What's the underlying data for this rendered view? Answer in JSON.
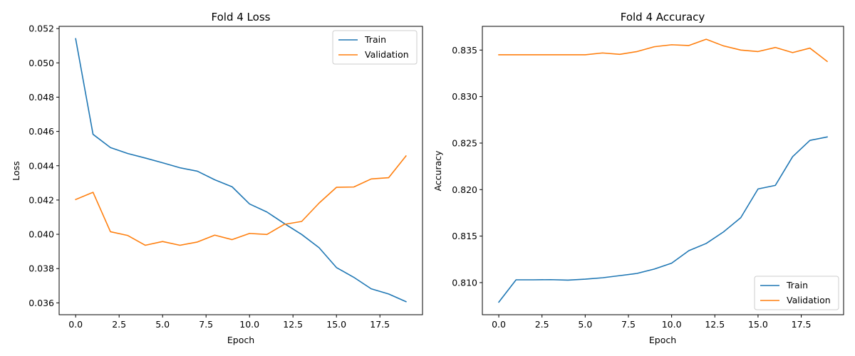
{
  "chart_data": [
    {
      "type": "line",
      "title": "Fold 4 Loss",
      "xlabel": "Epoch",
      "ylabel": "Loss",
      "xlim": [
        -0.95,
        19.95
      ],
      "ylim": [
        0.03531,
        0.05213
      ],
      "x_ticks": [
        0,
        2.5,
        5,
        7.5,
        10,
        12.5,
        15,
        17.5
      ],
      "x_tick_labels": [
        "0.0",
        "2.5",
        "5.0",
        "7.5",
        "10.0",
        "12.5",
        "15.0",
        "17.5"
      ],
      "y_ticks": [
        0.036,
        0.038,
        0.04,
        0.042,
        0.044,
        0.046,
        0.048,
        0.05,
        0.052
      ],
      "y_tick_labels": [
        "0.036",
        "0.038",
        "0.040",
        "0.042",
        "0.044",
        "0.046",
        "0.048",
        "0.050",
        "0.052"
      ],
      "legend_position": "top-right",
      "x": [
        0,
        1,
        2,
        3,
        4,
        5,
        6,
        7,
        8,
        9,
        10,
        11,
        12,
        13,
        14,
        15,
        16,
        17,
        18,
        19
      ],
      "series": [
        {
          "name": "Train",
          "color": "#1f77b4",
          "values": [
            0.05141,
            0.04583,
            0.04506,
            0.04471,
            0.04445,
            0.04417,
            0.04388,
            0.04368,
            0.04318,
            0.04277,
            0.04177,
            0.0413,
            0.04063,
            0.03999,
            0.03922,
            0.03806,
            0.03749,
            0.03682,
            0.03652,
            0.03607
          ]
        },
        {
          "name": "Validation",
          "color": "#ff7f0e",
          "values": [
            0.04203,
            0.04245,
            0.04015,
            0.03993,
            0.03936,
            0.03958,
            0.03936,
            0.03955,
            0.03995,
            0.03969,
            0.04005,
            0.03999,
            0.04058,
            0.04075,
            0.04182,
            0.04274,
            0.04276,
            0.04323,
            0.0433,
            0.04457
          ]
        }
      ]
    },
    {
      "type": "line",
      "title": "Fold 4 Accuracy",
      "xlabel": "Epoch",
      "ylabel": "Accuracy",
      "xlim": [
        -0.95,
        19.95
      ],
      "ylim": [
        0.80655,
        0.83755
      ],
      "x_ticks": [
        0,
        2.5,
        5,
        7.5,
        10,
        12.5,
        15,
        17.5
      ],
      "x_tick_labels": [
        "0.0",
        "2.5",
        "5.0",
        "7.5",
        "10.0",
        "12.5",
        "15.0",
        "17.5"
      ],
      "y_ticks": [
        0.81,
        0.815,
        0.82,
        0.825,
        0.83,
        0.835
      ],
      "y_tick_labels": [
        "0.810",
        "0.815",
        "0.820",
        "0.825",
        "0.830",
        "0.835"
      ],
      "legend_position": "bottom-right",
      "x": [
        0,
        1,
        2,
        3,
        4,
        5,
        6,
        7,
        8,
        9,
        10,
        11,
        12,
        13,
        14,
        15,
        16,
        17,
        18,
        19
      ],
      "series": [
        {
          "name": "Train",
          "color": "#1f77b4",
          "values": [
            0.8079,
            0.8103,
            0.8103,
            0.81032,
            0.81027,
            0.81037,
            0.81052,
            0.81075,
            0.81099,
            0.81146,
            0.81209,
            0.81344,
            0.81421,
            0.81545,
            0.81698,
            0.82007,
            0.82045,
            0.82354,
            0.82529,
            0.82566
          ]
        },
        {
          "name": "Validation",
          "color": "#ff7f0e",
          "values": [
            0.83449,
            0.83449,
            0.83449,
            0.83449,
            0.83449,
            0.83449,
            0.83469,
            0.83454,
            0.83484,
            0.83536,
            0.83557,
            0.83549,
            0.83616,
            0.83545,
            0.835,
            0.83484,
            0.83528,
            0.83473,
            0.83521,
            0.83378
          ]
        }
      ]
    }
  ]
}
